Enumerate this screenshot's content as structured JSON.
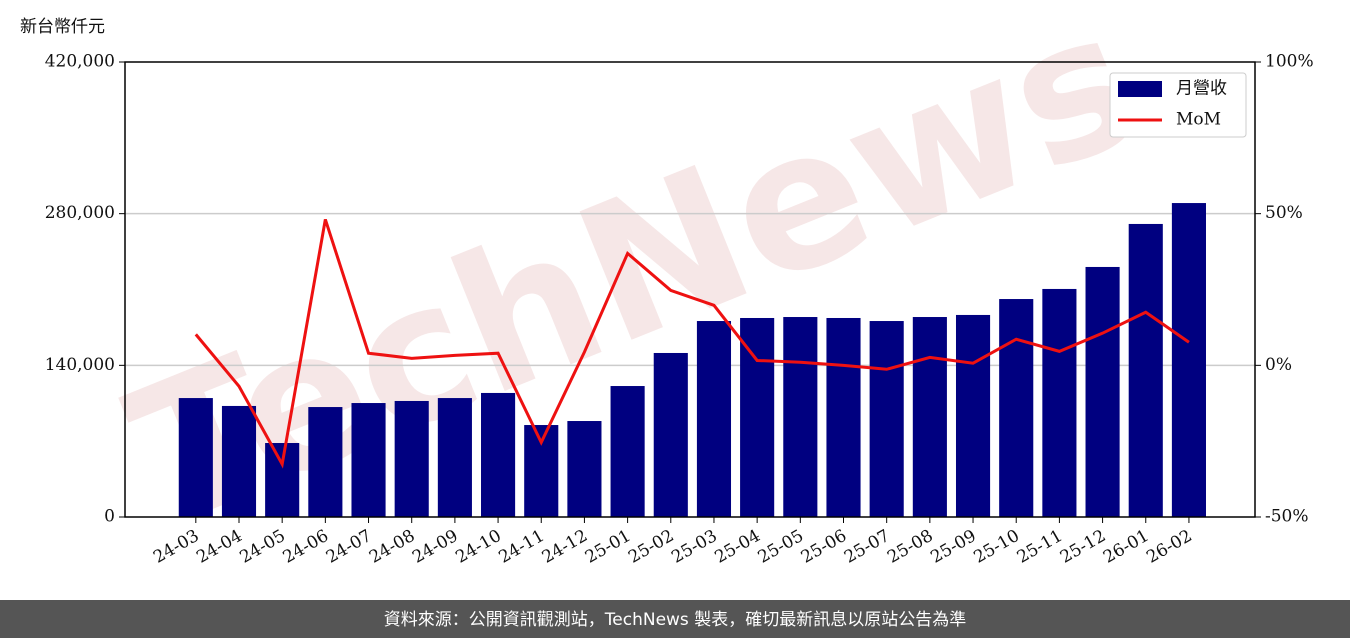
{
  "chart_data": {
    "type": "bar-line",
    "y_unit_label": "新台幣仟元",
    "watermark": "TechNews",
    "footer": "資料來源：公開資訊觀測站，TechNews 製表，確切最新訊息以原站公告為準",
    "categories": [
      "24-03",
      "24-04",
      "24-05",
      "24-06",
      "24-07",
      "24-08",
      "24-09",
      "24-10",
      "24-11",
      "24-12",
      "25-01",
      "25-02",
      "25-03",
      "25-04",
      "25-05",
      "25-06",
      "25-07",
      "25-08",
      "25-09",
      "25-10",
      "25-11",
      "25-12",
      "26-01",
      "26-02"
    ],
    "series": [
      {
        "name": "月營收",
        "type": "bar",
        "color": "#000080",
        "values": [
          109800,
          102500,
          68300,
          101500,
          105200,
          107100,
          109800,
          114500,
          84900,
          88600,
          120900,
          151400,
          180900,
          183700,
          184600,
          183700,
          180900,
          184600,
          186500,
          201200,
          210500,
          230800,
          270500,
          289800
        ]
      },
      {
        "name": "MoM",
        "type": "line",
        "axis": "y2",
        "color": "#ee1111",
        "values": [
          10.2,
          -6.9,
          -32.6,
          48.1,
          4.0,
          2.3,
          3.3,
          4.0,
          -25.4,
          4.4,
          36.9,
          24.7,
          19.8,
          1.6,
          1.0,
          0,
          -1.3,
          2.6,
          0.7,
          8.6,
          4.6,
          10.6,
          17.5,
          7.6
        ]
      }
    ],
    "ylim": [
      0,
      420000
    ],
    "yticks": [
      0,
      {
        "value": 140000,
        "label": "140,000"
      },
      {
        "value": 280000,
        "label": "280,000"
      },
      {
        "value": 420000,
        "label": "420,000"
      }
    ],
    "y2lim": [
      -50,
      100
    ],
    "y2ticks": [
      {
        "value": -50,
        "label": "-50%"
      },
      {
        "value": 0,
        "label": "0%"
      },
      {
        "value": 50,
        "label": "50%"
      },
      {
        "value": 100,
        "label": "100%"
      }
    ],
    "grid": true,
    "legend": "upper right"
  }
}
